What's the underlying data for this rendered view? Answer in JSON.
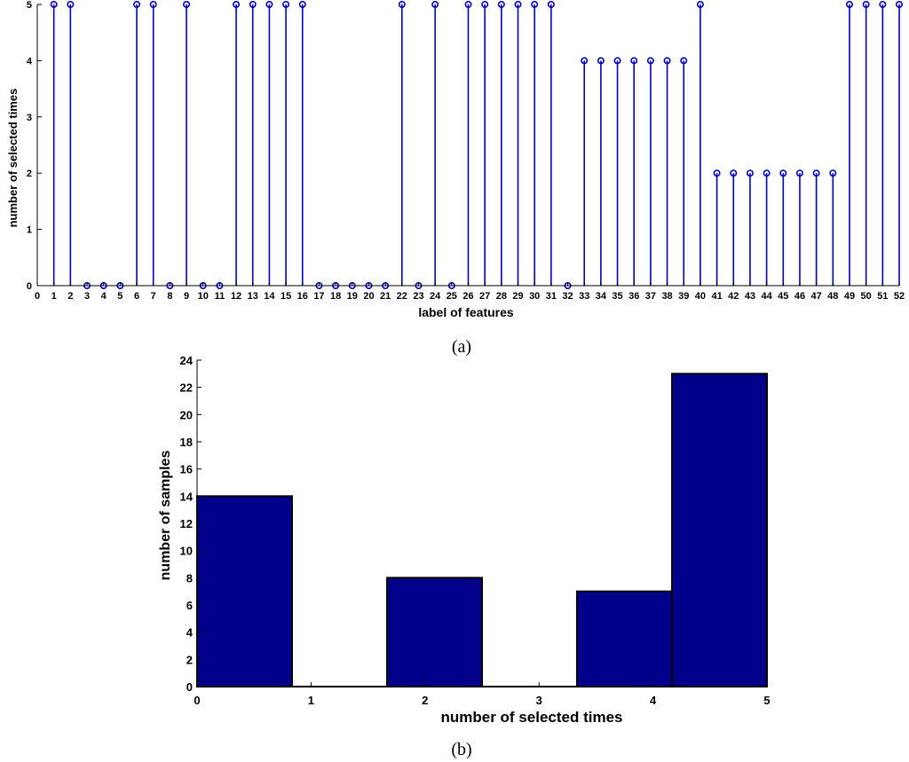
{
  "chart_data": [
    {
      "type": "stem",
      "panel": "(a)",
      "xlabel": "label of features",
      "ylabel": "number of selected times",
      "xlim": [
        0,
        52
      ],
      "ylim": [
        0,
        5
      ],
      "grid": false,
      "color": "#0000cc",
      "x": [
        1,
        2,
        3,
        4,
        5,
        6,
        7,
        8,
        9,
        10,
        11,
        12,
        13,
        14,
        15,
        16,
        17,
        18,
        19,
        20,
        21,
        22,
        23,
        24,
        25,
        26,
        27,
        28,
        29,
        30,
        31,
        32,
        33,
        34,
        35,
        36,
        37,
        38,
        39,
        40,
        41,
        42,
        43,
        44,
        45,
        46,
        47,
        48,
        49,
        50,
        51,
        52
      ],
      "values": [
        5,
        5,
        0,
        0,
        0,
        5,
        5,
        0,
        5,
        0,
        0,
        5,
        5,
        5,
        5,
        5,
        0,
        0,
        0,
        0,
        0,
        5,
        0,
        5,
        0,
        5,
        5,
        5,
        5,
        5,
        5,
        0,
        4,
        4,
        4,
        4,
        4,
        4,
        4,
        5,
        2,
        2,
        2,
        2,
        2,
        2,
        2,
        2,
        5,
        5,
        5,
        5
      ],
      "xticks": [
        0,
        1,
        2,
        3,
        4,
        5,
        6,
        7,
        8,
        9,
        10,
        11,
        12,
        13,
        14,
        15,
        16,
        17,
        18,
        19,
        20,
        21,
        22,
        23,
        24,
        25,
        26,
        27,
        28,
        29,
        30,
        31,
        32,
        33,
        34,
        35,
        36,
        37,
        38,
        39,
        40,
        41,
        42,
        43,
        44,
        45,
        46,
        47,
        48,
        49,
        50,
        51,
        52
      ],
      "yticks": [
        0,
        1,
        2,
        3,
        4,
        5
      ]
    },
    {
      "type": "histogram",
      "panel": "(b)",
      "xlabel": "number of selected times",
      "ylabel": "number of samples",
      "xlim": [
        0,
        5
      ],
      "ylim": [
        0,
        24
      ],
      "grid": false,
      "color": "#00008b",
      "bins": [
        {
          "start": 0.0,
          "end": 0.833,
          "value": 14
        },
        {
          "start": 0.833,
          "end": 1.667,
          "value": 0
        },
        {
          "start": 1.667,
          "end": 2.5,
          "value": 8
        },
        {
          "start": 2.5,
          "end": 3.333,
          "value": 0
        },
        {
          "start": 3.333,
          "end": 4.167,
          "value": 7
        },
        {
          "start": 4.167,
          "end": 5.0,
          "value": 23
        }
      ],
      "xticks": [
        0,
        1,
        2,
        3,
        4,
        5
      ],
      "yticks": [
        0,
        2,
        4,
        6,
        8,
        10,
        12,
        14,
        16,
        18,
        20,
        22,
        24
      ]
    }
  ]
}
